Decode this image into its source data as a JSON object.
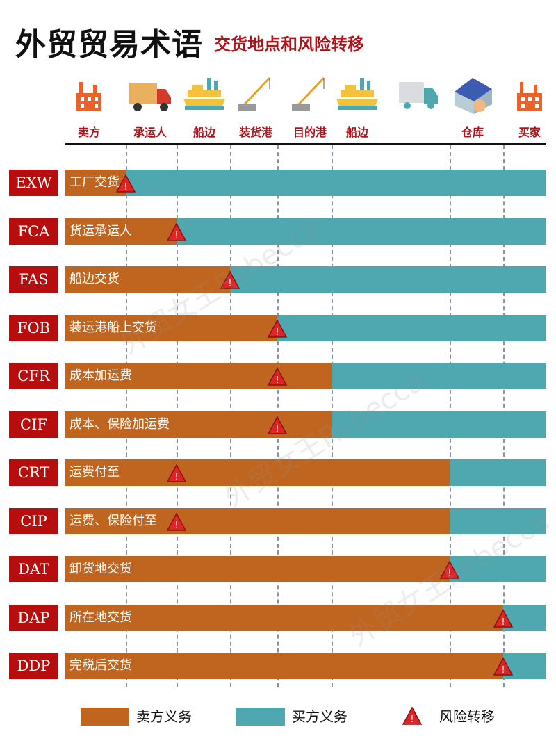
{
  "header": {
    "title": "外贸贸易术语",
    "subtitle": "交货地点和风险转移"
  },
  "columns": [
    {
      "label": "卖方",
      "icon": "factory-icon"
    },
    {
      "label": "承运人",
      "icon": "truck-icon"
    },
    {
      "label": "船边",
      "icon": "ship-icon"
    },
    {
      "label": "装货港",
      "icon": "crane-icon"
    },
    {
      "label": "目的港",
      "icon": "crane-icon"
    },
    {
      "label": "船边",
      "icon": "ship-icon"
    },
    {
      "label": "",
      "icon": "delivery-van-icon"
    },
    {
      "label": "仓库",
      "icon": "warehouse-icon"
    },
    {
      "label": "买家",
      "icon": "factory-icon"
    }
  ],
  "terms": [
    {
      "code": "EXW",
      "desc": "工厂交货",
      "seller_until": "卖方",
      "risk_at": "卖方"
    },
    {
      "code": "FCA",
      "desc": "货运承运人",
      "seller_until": "承运人",
      "risk_at": "承运人"
    },
    {
      "code": "FAS",
      "desc": "船边交货",
      "seller_until": "船边",
      "risk_at": "船边"
    },
    {
      "code": "FOB",
      "desc": "装运港船上交货",
      "seller_until": "装货港",
      "risk_at": "装货港"
    },
    {
      "code": "CFR",
      "desc": "成本加运费",
      "seller_until": "目的港",
      "risk_at": "装货港"
    },
    {
      "code": "CIF",
      "desc": "成本、保险加运费",
      "seller_until": "目的港",
      "risk_at": "装货港"
    },
    {
      "code": "CRT",
      "desc": "运费付至",
      "seller_until": "仓库",
      "risk_at": "承运人"
    },
    {
      "code": "CIP",
      "desc": "运费、保险付至",
      "seller_until": "仓库",
      "risk_at": "承运人"
    },
    {
      "code": "DAT",
      "desc": "卸货地交货",
      "seller_until": "仓库",
      "risk_at": "仓库"
    },
    {
      "code": "DAP",
      "desc": "所在地交货",
      "seller_until": "买家",
      "risk_at": "买家"
    },
    {
      "code": "DDP",
      "desc": "完税后交货",
      "seller_until": "买家",
      "risk_at": "买家"
    }
  ],
  "legend": {
    "seller": "卖方义务",
    "buyer": "买方义务",
    "risk": "风险转移"
  },
  "watermark": "外贸女王Rebecca",
  "colors": {
    "seller": "#c0651f",
    "buyer": "#4fa8b0",
    "label_bg": "#b80d0d",
    "accent": "#b0141a",
    "risk": "#e02424"
  }
}
